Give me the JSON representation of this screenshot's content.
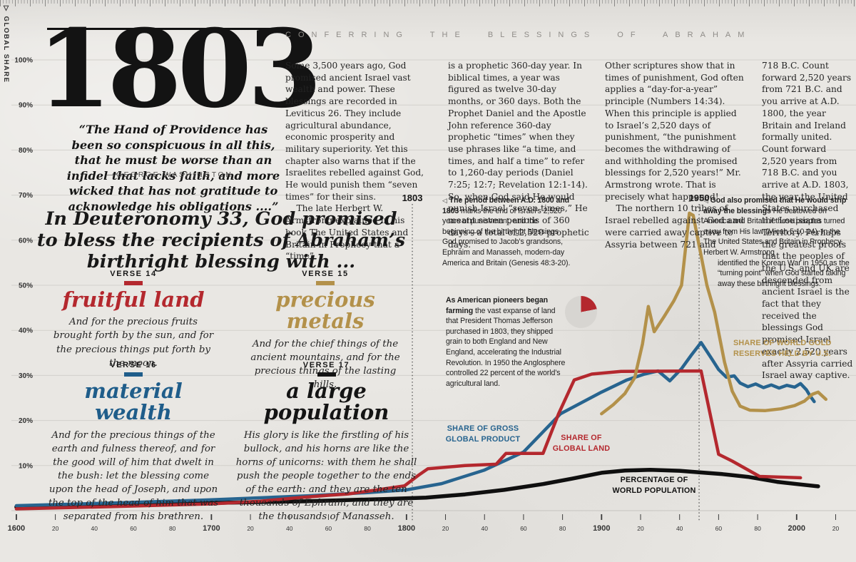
{
  "theme": {
    "red": "#b4282e",
    "gold": "#b3914a",
    "blue": "#27648f",
    "black": "#0f0f0f",
    "paper": "#e7e5e1",
    "grid": "#cfcdc8",
    "kicker_gray": "#8f8c88"
  },
  "header": {
    "year_headline": "1803",
    "kicker": "CONFERRING THE BLESSINGS OF ABRAHAM",
    "y_axis_caption": "GLOBAL SHARE",
    "y_axis_caption_icon": "▽"
  },
  "quote": {
    "text": "“The Hand of Providence has been so conspicuous in all this, that he must be worse than an infidel that lacks faith, and more wicked that has not gratitude to acknowledge his obligations ....”",
    "attribution": "—GEORGE WASHINGTON"
  },
  "intro_columns": [
    "Some 3,500 years ago, God promised ancient Israel vast wealth and power. These blessings are recorded in Leviticus 26. They include agricultural abundance, economic prosperity and military superiority. Yet this chapter also warns that if the Israelites rebelled against God, He would punish them “seven times” for their sins.\n    The late Herbert W. Armstrong explained in his book The United States and Britain in Prophecy that a “time”",
    "is a prophetic 360-day year. In biblical times, a year was figured as twelve 30-day months, or 360 days. Both the Prophet Daniel and the Apostle John reference 360-day prophetic “times” when they use phrases like “a time, and times, and half a time” to refer to 1,260-day periods (Daniel 7:25; 12:7; Revelation 12:1-14). So, when God said He would punish Israel “seven times,” He meant seven periods of 360 days—a total of 2,520 prophetic days.",
    "Other scriptures show that in times of punishment, God often applies a “day-for-a-year” principle (Numbers 14:34). When this principle is applied to Israel’s 2,520 days of punishment, “the punishment becomes the withdrawing of and withholding the promised blessings for 2,520 years!” Mr. Armstrong wrote. That is precisely what happened!\n    The northern 10 tribes of Israel rebelled against God and were carried away captive to Assyria between 721 and",
    "718 B.C. Count forward 2,520 years from 721 B.C. and you arrive at A.D. 1800, the year Britain and Ireland formally united. Count forward 2,520 years from 718 B.C. and you arrive at A.D. 1803, the year the United States purchased the Louisiana Territory. Perhaps the greatest proofs that the peoples of the U.S. and UK are descended from ancient Israel is the fact that they received the blessings God promised Israel exactly 2,520 years after Assyria carried Israel away captive."
  ],
  "deuteronomy_heading": "In Deuteronomy 33, God promised to bless the recipients of Abraham’s birthright blessing with ...",
  "verses": [
    {
      "label": "VERSE 14",
      "title": "fruitful land",
      "color": "#b4282e",
      "text": "And for the precious fruits brought forth by the sun, and for the precious things put forth by the moon."
    },
    {
      "label": "VERSE 15",
      "title": "precious metals",
      "color": "#b3914a",
      "text": "And for the chief things of the ancient mountains, and for the precious things of the lasting hills."
    },
    {
      "label": "VERSE 16",
      "title": "material wealth",
      "color": "#1f5d8a",
      "text": "And for the precious things of the earth and fulness thereof, and for the good will of him that dwelt in the bush: let the blessing come upon the head of Joseph, and upon the top of the head of him that was separated from his brethren."
    },
    {
      "label": "VERSE 17",
      "title": "a large population",
      "color": "#141414",
      "text": "His glory is like the firstling of his bullock, and his horns are like the horns of unicorns: with them he shall push the people together to the ends of the earth: and they are the ten thousands of Ephraim, and they are the thousands of Manasseh."
    }
  ],
  "annotations": {
    "marker": "◁",
    "a1803": {
      "lead": "The period between A.D. 1800 and 1803",
      "rest": " marks the end of Israel’s 2,520 years of punishment, and the beginning of the birthright blessings God promised to Jacob’s grandsons, Ephraim and Manasseh, modern-day America and Britain (Genesis 48:3-20)."
    },
    "a1950": {
      "lead": "God also promised that He would strip away the blessings",
      "rest": " He bestowed on America and Britain if these peoples turned away from His law (Micah 5:10-14). In the The United States and Britain in Prophecy, Herbert W. Armstrong",
      "rest2": "identified the Korean War in 1950 as the “turning point” when God started taking away these birthright blessings."
    },
    "pioneers": {
      "lead": "As American pioneers began farming",
      "rest": " the vast expanse of land that President Thomas Jefferson purchased in 1803, they shipped grain to both England and New England, accelerating the Industrial Revolution. In 1950 the Anglosphere controlled 22 percent of the world’s agricultural land."
    }
  },
  "chart_data": {
    "type": "line",
    "title": "Anglosphere global shares, 1600–2020",
    "y_axis": {
      "label": "GLOBAL SHARE",
      "min": 0,
      "max": 100,
      "tick_labels": [
        "100%",
        "90%",
        "80%",
        "70%",
        "60%",
        "50%",
        "40%",
        "30%",
        "20%",
        "10%"
      ]
    },
    "x_axis": {
      "start": 1600,
      "end": 2020,
      "step": 20,
      "tick_labels": [
        "1600",
        "20",
        "40",
        "60",
        "80",
        "1700",
        "20",
        "40",
        "60",
        "80",
        "1800",
        "20",
        "40",
        "60",
        "80",
        "1900",
        "20",
        "40",
        "60",
        "80",
        "2000",
        "20"
      ]
    },
    "events": [
      {
        "year": 1803,
        "label": "1803"
      },
      {
        "year": 1950,
        "label": "1950"
      }
    ],
    "series": [
      {
        "name": "PERCENTAGE OF\nWORLD POPULATION",
        "color": "#0f0f0f",
        "width": 5.5,
        "points": [
          [
            1600,
            0.8
          ],
          [
            1650,
            1.2
          ],
          [
            1700,
            1.7
          ],
          [
            1750,
            2.1
          ],
          [
            1790,
            2.6
          ],
          [
            1810,
            2.9
          ],
          [
            1830,
            3.6
          ],
          [
            1850,
            4.6
          ],
          [
            1870,
            5.9
          ],
          [
            1885,
            7.1
          ],
          [
            1900,
            8.4
          ],
          [
            1912,
            8.9
          ],
          [
            1925,
            9.05
          ],
          [
            1940,
            8.85
          ],
          [
            1950,
            8.5
          ],
          [
            1962,
            8.1
          ],
          [
            1975,
            7.5
          ],
          [
            1990,
            6.4
          ],
          [
            2000,
            5.9
          ],
          [
            2011,
            5.4
          ]
        ]
      },
      {
        "name": "SHARE OF GROSS\nGLOBAL PRODUCT",
        "color": "#27648f",
        "width": 4.5,
        "points": [
          [
            1600,
            1.1
          ],
          [
            1650,
            1.7
          ],
          [
            1700,
            2.4
          ],
          [
            1750,
            3.3
          ],
          [
            1780,
            4.0
          ],
          [
            1800,
            4.6
          ],
          [
            1818,
            6.0
          ],
          [
            1840,
            9.0
          ],
          [
            1860,
            13.0
          ],
          [
            1879,
            21.5
          ],
          [
            1900,
            26.3
          ],
          [
            1913,
            29.0
          ],
          [
            1922,
            30.3
          ],
          [
            1929,
            31.0
          ],
          [
            1935,
            28.8
          ],
          [
            1941,
            31.5
          ],
          [
            1946,
            34.5
          ],
          [
            1951,
            37.3
          ],
          [
            1956,
            34.0
          ],
          [
            1960,
            31.3
          ],
          [
            1964,
            29.6
          ],
          [
            1968,
            29.9
          ],
          [
            1971,
            28.3
          ],
          [
            1975,
            27.5
          ],
          [
            1979,
            28.1
          ],
          [
            1983,
            27.3
          ],
          [
            1987,
            27.9
          ],
          [
            1991,
            27.2
          ],
          [
            1995,
            27.8
          ],
          [
            1999,
            27.4
          ],
          [
            2002,
            28.2
          ],
          [
            2005,
            26.8
          ],
          [
            2007,
            25.4
          ],
          [
            2009,
            24.2
          ]
        ]
      },
      {
        "name": "SHARE OF\nGLOBAL LAND",
        "color": "#b4282e",
        "width": 4.5,
        "points": [
          [
            1600,
            0.4
          ],
          [
            1650,
            0.9
          ],
          [
            1700,
            1.5
          ],
          [
            1725,
            2.1
          ],
          [
            1745,
            2.9
          ],
          [
            1760,
            3.4
          ],
          [
            1770,
            3.7
          ],
          [
            1785,
            4.6
          ],
          [
            1799,
            5.5
          ],
          [
            1806,
            7.8
          ],
          [
            1811,
            9.3
          ],
          [
            1830,
            10.0
          ],
          [
            1846,
            10.3
          ],
          [
            1851,
            12.7
          ],
          [
            1870,
            12.7
          ],
          [
            1878,
            21.5
          ],
          [
            1886,
            29.0
          ],
          [
            1895,
            30.3
          ],
          [
            1910,
            30.9
          ],
          [
            1951,
            31.0
          ],
          [
            1960,
            12.5
          ],
          [
            1967,
            11.0
          ],
          [
            1981,
            7.6
          ],
          [
            2002,
            7.3
          ]
        ]
      },
      {
        "name": "SHARE OF WORLD GOLD\nRESERVES HELD BY U.S.",
        "color": "#b3914a",
        "width": 4.5,
        "points": [
          [
            1900,
            21.5
          ],
          [
            1906,
            23.5
          ],
          [
            1912,
            26.0
          ],
          [
            1917,
            29.5
          ],
          [
            1921,
            37.0
          ],
          [
            1924,
            45.3
          ],
          [
            1927,
            39.7
          ],
          [
            1932,
            43.0
          ],
          [
            1937,
            46.5
          ],
          [
            1941,
            50.0
          ],
          [
            1945,
            66.0
          ],
          [
            1947,
            65.5
          ],
          [
            1954,
            50.0
          ],
          [
            1958,
            44.0
          ],
          [
            1963,
            33.0
          ],
          [
            1967,
            26.5
          ],
          [
            1971,
            23.2
          ],
          [
            1976,
            22.3
          ],
          [
            1984,
            22.2
          ],
          [
            1992,
            22.6
          ],
          [
            1999,
            23.3
          ],
          [
            2004,
            24.3
          ],
          [
            2008,
            25.8
          ],
          [
            2011,
            26.3
          ],
          [
            2015,
            24.7
          ]
        ]
      }
    ],
    "pie": {
      "value_pct": 22,
      "slice_color": "#b4282e",
      "rest_color": "#d7d5d1"
    },
    "legend_position": "inline-labels",
    "grid": true
  }
}
